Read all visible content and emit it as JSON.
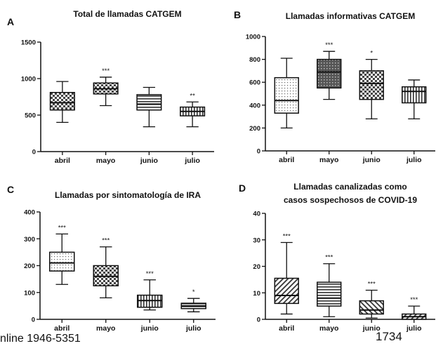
{
  "footer": {
    "left_text": "nline 1946-5351",
    "right_text": "1734"
  },
  "chart_data": [
    {
      "type": "boxplot",
      "panel_letter": "A",
      "title": "Total de llamadas CATGEM",
      "categories": [
        "abril",
        "mayo",
        "junio",
        "julio"
      ],
      "ylim": [
        0,
        1500
      ],
      "yticks": [
        0,
        500,
        1000,
        1500
      ],
      "boxes": [
        {
          "min": 400,
          "q1": 570,
          "median": 670,
          "q3": 810,
          "max": 960,
          "sig": "",
          "pattern": "checker"
        },
        {
          "min": 630,
          "q1": 790,
          "median": 860,
          "q3": 940,
          "max": 1020,
          "sig": "***",
          "pattern": "checker"
        },
        {
          "min": 340,
          "q1": 570,
          "median": 650,
          "q3": 780,
          "max": 880,
          "sig": "",
          "pattern": "hlines"
        },
        {
          "min": 340,
          "q1": 490,
          "median": 550,
          "q3": 610,
          "max": 680,
          "sig": "**",
          "pattern": "vlines"
        }
      ]
    },
    {
      "type": "boxplot",
      "panel_letter": "B",
      "title": "Llamadas informativas CATGEM",
      "categories": [
        "abril",
        "mayo",
        "junio",
        "julio"
      ],
      "ylim": [
        0,
        1000
      ],
      "yticks": [
        0,
        200,
        400,
        600,
        800,
        1000
      ],
      "boxes": [
        {
          "min": 200,
          "q1": 330,
          "median": 440,
          "q3": 640,
          "max": 810,
          "sig": "",
          "pattern": "dots"
        },
        {
          "min": 450,
          "q1": 550,
          "median": 690,
          "q3": 800,
          "max": 870,
          "sig": "***",
          "pattern": "dense"
        },
        {
          "min": 280,
          "q1": 450,
          "median": 590,
          "q3": 700,
          "max": 800,
          "sig": "*",
          "pattern": "checker"
        },
        {
          "min": 280,
          "q1": 420,
          "median": 520,
          "q3": 560,
          "max": 620,
          "sig": "",
          "pattern": "vlines"
        }
      ]
    },
    {
      "type": "boxplot",
      "panel_letter": "C",
      "title": "Llamadas por sintomatología de IRA",
      "categories": [
        "abril",
        "mayo",
        "junio",
        "julio"
      ],
      "ylim": [
        0,
        400
      ],
      "yticks": [
        0,
        100,
        200,
        300,
        400
      ],
      "boxes": [
        {
          "min": 130,
          "q1": 180,
          "median": 210,
          "q3": 250,
          "max": 318,
          "sig": "***",
          "pattern": "dots"
        },
        {
          "min": 80,
          "q1": 125,
          "median": 160,
          "q3": 200,
          "max": 270,
          "sig": "***",
          "pattern": "checker"
        },
        {
          "min": 35,
          "q1": 45,
          "median": 70,
          "q3": 90,
          "max": 147,
          "sig": "***",
          "pattern": "vlines"
        },
        {
          "min": 28,
          "q1": 40,
          "median": 50,
          "q3": 60,
          "max": 78,
          "sig": "*",
          "pattern": "hlines"
        }
      ]
    },
    {
      "type": "boxplot",
      "panel_letter": "D",
      "title": "Llamadas canalizadas como casos sospechosos de COVID-19",
      "title_lines": [
        "Llamadas canalizadas como",
        "casos sospechosos de COVID-19"
      ],
      "categories": [
        "abril",
        "mayo",
        "junio",
        "julio"
      ],
      "ylim": [
        0,
        40
      ],
      "yticks": [
        0,
        10,
        20,
        30,
        40
      ],
      "boxes": [
        {
          "min": 2,
          "q1": 6,
          "median": 9,
          "q3": 15.5,
          "max": 29,
          "sig": "***",
          "pattern": "diag"
        },
        {
          "min": 1,
          "q1": 5,
          "median": 8,
          "q3": 14,
          "max": 21,
          "sig": "***",
          "pattern": "hlines"
        },
        {
          "min": 0.5,
          "q1": 2,
          "median": 3.5,
          "q3": 7,
          "max": 11,
          "sig": "***",
          "pattern": "diag2"
        },
        {
          "min": 0,
          "q1": 0,
          "median": 1,
          "q3": 2,
          "max": 5,
          "sig": "***",
          "pattern": "diag"
        }
      ]
    }
  ]
}
